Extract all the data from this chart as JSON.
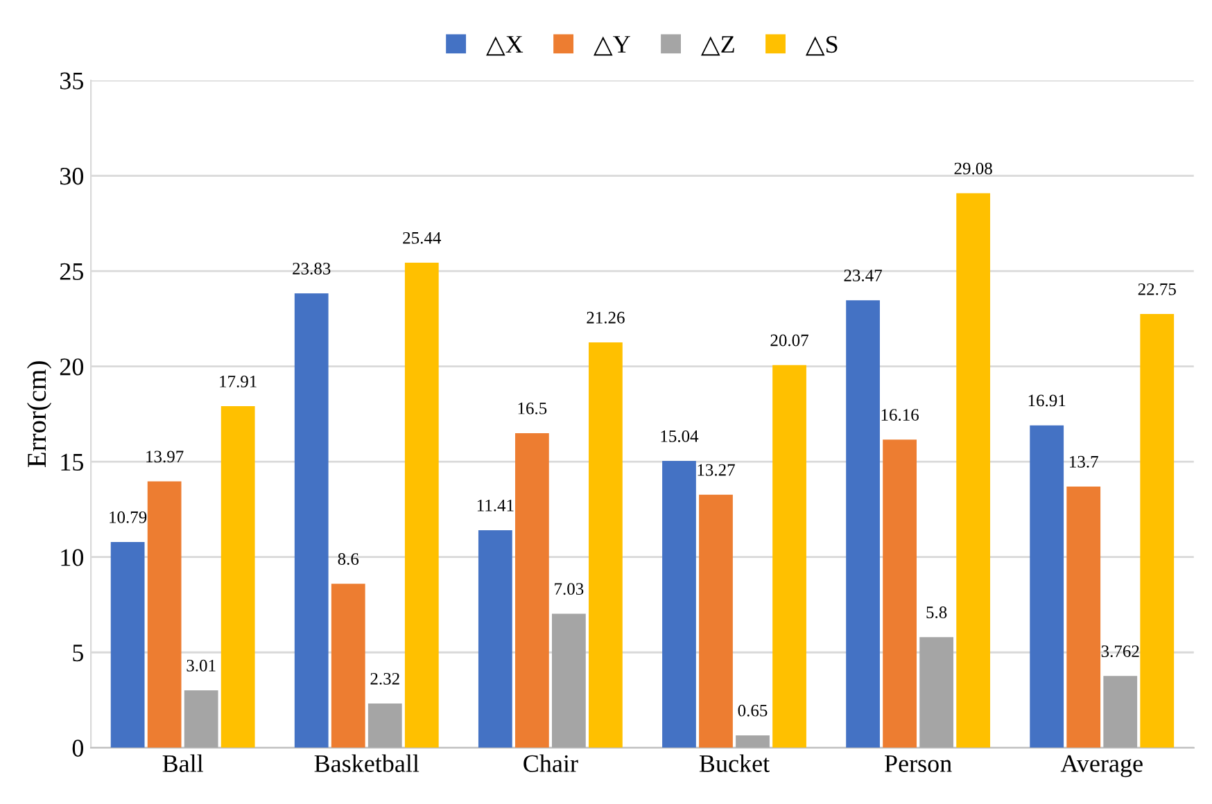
{
  "chart_data": {
    "type": "bar",
    "ylabel": "Error(cm)",
    "categories": [
      "Ball",
      "Basketball",
      "Chair",
      "Bucket",
      "Person",
      "Average"
    ],
    "series": [
      {
        "name": "△X",
        "color": "#4472c4",
        "values": [
          10.79,
          23.83,
          11.41,
          15.04,
          23.47,
          16.91
        ]
      },
      {
        "name": "△Y",
        "color": "#ed7d31",
        "values": [
          13.97,
          8.6,
          16.5,
          13.27,
          16.16,
          13.7
        ]
      },
      {
        "name": "△Z",
        "color": "#a5a5a5",
        "values": [
          3.01,
          2.32,
          7.03,
          0.65,
          5.8,
          3.762
        ]
      },
      {
        "name": "△S",
        "color": "#ffc000",
        "values": [
          17.91,
          25.44,
          21.26,
          20.07,
          29.08,
          22.75
        ]
      }
    ],
    "ylim": [
      0,
      35
    ],
    "yticks": [
      0,
      5,
      10,
      15,
      20,
      25,
      30,
      35
    ],
    "grid": "y",
    "legend": "top",
    "data_labels": true
  }
}
